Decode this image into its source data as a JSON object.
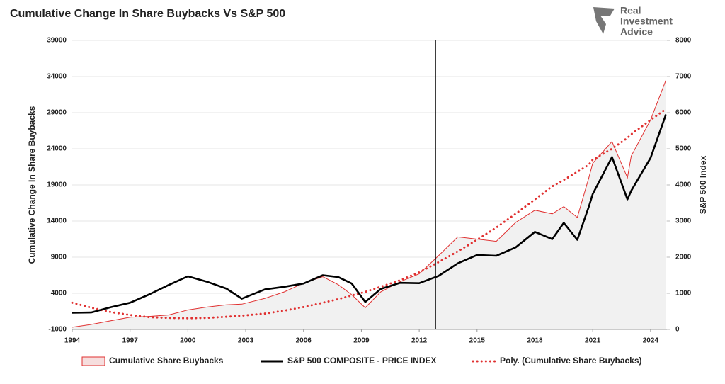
{
  "chart_data": {
    "type": "line",
    "title": "Cumulative Change In Share Buybacks Vs S&P 500",
    "logo_text": [
      "Real",
      "Investment",
      "Advice"
    ],
    "y_label": "Cumulative Change In Share Buybacks",
    "y2_label": "S&P 500 Index",
    "x": [
      1994,
      1995,
      1996,
      1997,
      1998,
      1999,
      2000,
      2001,
      2002,
      2002.8,
      2004,
      2005,
      2006,
      2007,
      2007.8,
      2008.5,
      2009.2,
      2010,
      2011,
      2012,
      2013,
      2014,
      2015,
      2016,
      2017,
      2018,
      2018.9,
      2019.5,
      2020.2,
      2020.8,
      2021,
      2022,
      2022.8,
      2023,
      2024,
      2024.8
    ],
    "xlim": [
      1994,
      2024.85
    ],
    "xticks": [
      1994,
      1997,
      2000,
      2003,
      2006,
      2009,
      2012,
      2015,
      2018,
      2021,
      2024
    ],
    "ylim": [
      -1000,
      39000
    ],
    "yticks": [
      -1000,
      4000,
      9000,
      14000,
      19000,
      24000,
      29000,
      34000,
      39000
    ],
    "y2lim": [
      0,
      8000
    ],
    "y2ticks": [
      0,
      1000,
      2000,
      3000,
      4000,
      5000,
      6000,
      7000,
      8000
    ],
    "grid": true,
    "vertical_line_x": 2012.85,
    "series": [
      {
        "name": "Cumulative Share Buybacks",
        "color": "#e03030",
        "style": "area",
        "axis": "y",
        "values": [
          -700,
          -300,
          200,
          700,
          800,
          1000,
          1700,
          2100,
          2400,
          2500,
          3300,
          4200,
          5400,
          6300,
          5200,
          3800,
          2000,
          4200,
          5600,
          6700,
          9200,
          11800,
          11500,
          11200,
          13800,
          15500,
          15000,
          16000,
          14500,
          20000,
          22000,
          25000,
          20000,
          23000,
          28000,
          33500
        ]
      },
      {
        "name": "S&P 500 COMPOSITE - PRICE INDEX",
        "color": "#000000",
        "style": "line",
        "axis": "y2",
        "values": [
          460,
          470,
          615,
          740,
          970,
          1230,
          1470,
          1320,
          1130,
          850,
          1110,
          1180,
          1270,
          1500,
          1450,
          1270,
          760,
          1120,
          1290,
          1280,
          1480,
          1830,
          2060,
          2040,
          2270,
          2700,
          2500,
          2950,
          2480,
          3400,
          3750,
          4770,
          3600,
          3840,
          4750,
          5950
        ]
      },
      {
        "name": "Poly. (Cumulative Share Buybacks)",
        "color": "#e03030",
        "style": "dotted",
        "axis": "y",
        "values": [
          2700,
          2000,
          1400,
          1000,
          700,
          600,
          550,
          600,
          750,
          900,
          1200,
          1600,
          2100,
          2700,
          3200,
          3700,
          4200,
          4900,
          5800,
          6900,
          8300,
          9800,
          11400,
          13100,
          15000,
          17000,
          18800,
          19700,
          20800,
          21800,
          22500,
          24000,
          25500,
          26000,
          28000,
          29500
        ]
      }
    ]
  }
}
